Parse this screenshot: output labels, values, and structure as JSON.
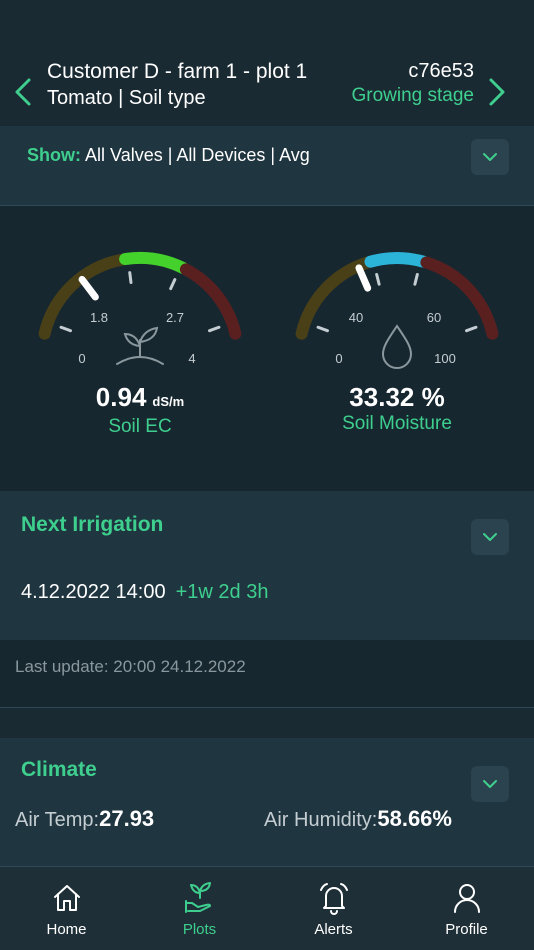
{
  "header": {
    "title": "Customer D - farm 1 - plot 1",
    "subtitle": "Tomato | Soil type",
    "code": "c76e53",
    "stage": "Growing stage",
    "prev_icon": "chevron-left-icon",
    "next_icon": "chevron-right-icon"
  },
  "show": {
    "label": "Show:",
    "value": "All Valves | All Devices | Avg"
  },
  "gauges": {
    "ec": {
      "value": "0.94",
      "unit": "dS/m",
      "label": "Soil EC",
      "min": "0",
      "low": "1.8",
      "high": "2.7",
      "max": "4",
      "reading": 0.94,
      "range": [
        0,
        4
      ],
      "icon": "plant-sprout-icon",
      "colors": {
        "low": "#4a4018",
        "mid": "#45d12c",
        "high": "#5a2020"
      }
    },
    "moisture": {
      "value": "33.32 %",
      "label": "Soil Moisture",
      "min": "0",
      "low": "40",
      "high": "60",
      "max": "100",
      "reading": 33.32,
      "range": [
        0,
        100
      ],
      "icon": "water-drop-icon",
      "colors": {
        "low": "#4a4018",
        "mid": "#2bb3d8",
        "high": "#5a2020"
      }
    }
  },
  "irrigation": {
    "title": "Next Irrigation",
    "date": "4.12.2022 14:00",
    "relative": "+1w 2d 3h"
  },
  "last_update": "Last update: 20:00 24.12.2022",
  "climate": {
    "title": "Climate",
    "air_temp_label": "Air Temp:",
    "air_temp_value": "27.93",
    "air_humidity_label": "Air Humidity:",
    "air_humidity_value": "58.66%"
  },
  "nav": {
    "items": [
      {
        "label": "Home",
        "icon": "home-icon"
      },
      {
        "label": "Plots",
        "icon": "plant-hand-icon"
      },
      {
        "label": "Alerts",
        "icon": "bell-icon"
      },
      {
        "label": "Profile",
        "icon": "user-icon"
      }
    ]
  },
  "colors": {
    "accent": "#3ecf8e",
    "background": "#1a2a33",
    "panel": "#1f3540"
  }
}
